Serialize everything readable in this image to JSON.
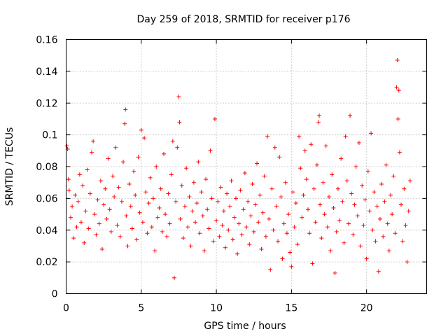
{
  "chart_data": {
    "type": "scatter",
    "title": "Day 259 of 2018, SRMTID for receiver p176",
    "xlabel": "GPS time / hours",
    "ylabel": "SRMTID / TECUs",
    "xlim": [
      0,
      24
    ],
    "ylim": [
      0,
      0.16
    ],
    "xticks": [
      0,
      5,
      10,
      15,
      20
    ],
    "xtick_labels": [
      "0",
      "5",
      "10",
      "15",
      "20"
    ],
    "yticks": [
      0,
      0.02,
      0.04,
      0.06,
      0.08,
      0.1,
      0.12,
      0.14,
      0.16
    ],
    "ytick_labels": [
      "0",
      "0.02",
      "0.04",
      "0.06",
      "0.08",
      "0.1",
      "0.12",
      "0.14",
      "0.16"
    ],
    "grid": true,
    "marker": "+",
    "color": "#ff0000",
    "series": [
      {
        "name": "SRMTID",
        "points": [
          [
            0.05,
            0.093
          ],
          [
            0.1,
            0.091
          ],
          [
            0.15,
            0.072
          ],
          [
            0.2,
            0.065
          ],
          [
            0.3,
            0.048
          ],
          [
            0.4,
            0.055
          ],
          [
            0.5,
            0.035
          ],
          [
            0.6,
            0.062
          ],
          [
            0.7,
            0.042
          ],
          [
            0.8,
            0.058
          ],
          [
            0.9,
            0.075
          ],
          [
            1.0,
            0.045
          ],
          [
            1.1,
            0.068
          ],
          [
            1.2,
            0.032
          ],
          [
            1.3,
            0.052
          ],
          [
            1.4,
            0.078
          ],
          [
            1.5,
            0.041
          ],
          [
            1.6,
            0.063
          ],
          [
            1.7,
            0.089
          ],
          [
            1.8,
            0.096
          ],
          [
            1.9,
            0.05
          ],
          [
            2.0,
            0.037
          ],
          [
            2.1,
            0.059
          ],
          [
            2.2,
            0.044
          ],
          [
            2.3,
            0.071
          ],
          [
            2.4,
            0.028
          ],
          [
            2.5,
            0.056
          ],
          [
            2.6,
            0.066
          ],
          [
            2.7,
            0.047
          ],
          [
            2.8,
            0.085
          ],
          [
            2.9,
            0.053
          ],
          [
            3.0,
            0.039
          ],
          [
            3.1,
            0.074
          ],
          [
            3.2,
            0.061
          ],
          [
            3.3,
            0.092
          ],
          [
            3.4,
            0.043
          ],
          [
            3.5,
            0.067
          ],
          [
            3.6,
            0.036
          ],
          [
            3.7,
            0.058
          ],
          [
            3.8,
            0.083
          ],
          [
            3.9,
            0.107
          ],
          [
            3.95,
            0.116
          ],
          [
            4.0,
            0.049
          ],
          [
            4.1,
            0.03
          ],
          [
            4.2,
            0.069
          ],
          [
            4.3,
            0.055
          ],
          [
            4.4,
            0.041
          ],
          [
            4.5,
            0.077
          ],
          [
            4.6,
            0.062
          ],
          [
            4.7,
            0.034
          ],
          [
            4.8,
            0.086
          ],
          [
            4.9,
            0.051
          ],
          [
            5.0,
            0.103
          ],
          [
            5.1,
            0.045
          ],
          [
            5.2,
            0.098
          ],
          [
            5.3,
            0.064
          ],
          [
            5.4,
            0.038
          ],
          [
            5.5,
            0.057
          ],
          [
            5.6,
            0.073
          ],
          [
            5.7,
            0.042
          ],
          [
            5.8,
            0.06
          ],
          [
            5.9,
            0.027
          ],
          [
            6.0,
            0.08
          ],
          [
            6.1,
            0.048
          ],
          [
            6.2,
            0.054
          ],
          [
            6.3,
            0.066
          ],
          [
            6.4,
            0.039
          ],
          [
            6.5,
            0.088
          ],
          [
            6.6,
            0.05
          ],
          [
            6.7,
            0.036
          ],
          [
            6.8,
            0.063
          ],
          [
            6.9,
            0.044
          ],
          [
            7.0,
            0.075
          ],
          [
            7.1,
            0.096
          ],
          [
            7.2,
            0.01
          ],
          [
            7.3,
            0.058
          ],
          [
            7.4,
            0.092
          ],
          [
            7.5,
            0.124
          ],
          [
            7.55,
            0.108
          ],
          [
            7.6,
            0.047
          ],
          [
            7.7,
            0.068
          ],
          [
            7.8,
            0.035
          ],
          [
            7.9,
            0.055
          ],
          [
            8.0,
            0.079
          ],
          [
            8.1,
            0.042
          ],
          [
            8.2,
            0.061
          ],
          [
            8.3,
            0.03
          ],
          [
            8.4,
            0.052
          ],
          [
            8.5,
            0.07
          ],
          [
            8.6,
            0.045
          ],
          [
            8.7,
            0.057
          ],
          [
            8.8,
            0.083
          ],
          [
            8.9,
            0.038
          ],
          [
            9.0,
            0.064
          ],
          [
            9.1,
            0.049
          ],
          [
            9.2,
            0.027
          ],
          [
            9.3,
            0.072
          ],
          [
            9.4,
            0.053
          ],
          [
            9.5,
            0.041
          ],
          [
            9.6,
            0.09
          ],
          [
            9.7,
            0.06
          ],
          [
            9.8,
            0.033
          ],
          [
            9.9,
            0.11
          ],
          [
            10.0,
            0.046
          ],
          [
            10.1,
            0.058
          ],
          [
            10.2,
            0.036
          ],
          [
            10.3,
            0.067
          ],
          [
            10.4,
            0.043
          ],
          [
            10.5,
            0.052
          ],
          [
            10.6,
            0.029
          ],
          [
            10.7,
            0.063
          ],
          [
            10.8,
            0.04
          ],
          [
            10.9,
            0.055
          ],
          [
            11.0,
            0.071
          ],
          [
            11.1,
            0.034
          ],
          [
            11.2,
            0.048
          ],
          [
            11.3,
            0.06
          ],
          [
            11.4,
            0.025
          ],
          [
            11.5,
            0.044
          ],
          [
            11.6,
            0.065
          ],
          [
            11.7,
            0.037
          ],
          [
            11.8,
            0.053
          ],
          [
            11.9,
            0.076
          ],
          [
            12.0,
            0.042
          ],
          [
            12.1,
            0.058
          ],
          [
            12.2,
            0.031
          ],
          [
            12.3,
            0.049
          ],
          [
            12.4,
            0.069
          ],
          [
            12.5,
            0.039
          ],
          [
            12.6,
            0.056
          ],
          [
            12.7,
            0.082
          ],
          [
            12.8,
            0.045
          ],
          [
            12.9,
            0.062
          ],
          [
            13.0,
            0.028
          ],
          [
            13.1,
            0.051
          ],
          [
            13.2,
            0.074
          ],
          [
            13.3,
            0.036
          ],
          [
            13.4,
            0.099
          ],
          [
            13.5,
            0.047
          ],
          [
            13.6,
            0.015
          ],
          [
            13.7,
            0.066
          ],
          [
            13.8,
            0.04
          ],
          [
            13.9,
            0.092
          ],
          [
            14.0,
            0.055
          ],
          [
            14.1,
            0.033
          ],
          [
            14.2,
            0.086
          ],
          [
            14.3,
            0.061
          ],
          [
            14.4,
            0.022
          ],
          [
            14.5,
            0.044
          ],
          [
            14.6,
            0.07
          ],
          [
            14.7,
            0.038
          ],
          [
            14.8,
            0.05
          ],
          [
            14.9,
            0.026
          ],
          [
            15.0,
            0.017
          ],
          [
            15.1,
            0.064
          ],
          [
            15.2,
            0.042
          ],
          [
            15.3,
            0.057
          ],
          [
            15.4,
            0.031
          ],
          [
            15.5,
            0.099
          ],
          [
            15.6,
            0.079
          ],
          [
            15.7,
            0.048
          ],
          [
            15.8,
            0.062
          ],
          [
            15.9,
            0.09
          ],
          [
            16.0,
            0.072
          ],
          [
            16.1,
            0.053
          ],
          [
            16.2,
            0.038
          ],
          [
            16.3,
            0.094
          ],
          [
            16.4,
            0.019
          ],
          [
            16.5,
            0.066
          ],
          [
            16.6,
            0.045
          ],
          [
            16.7,
            0.081
          ],
          [
            16.8,
            0.108
          ],
          [
            16.85,
            0.112
          ],
          [
            16.9,
            0.056
          ],
          [
            17.0,
            0.035
          ],
          [
            17.1,
            0.07
          ],
          [
            17.2,
            0.05
          ],
          [
            17.3,
            0.093
          ],
          [
            17.4,
            0.042
          ],
          [
            17.5,
            0.061
          ],
          [
            17.6,
            0.027
          ],
          [
            17.7,
            0.075
          ],
          [
            17.8,
            0.054
          ],
          [
            17.9,
            0.013
          ],
          [
            18.0,
            0.039
          ],
          [
            18.1,
            0.066
          ],
          [
            18.2,
            0.046
          ],
          [
            18.3,
            0.085
          ],
          [
            18.4,
            0.058
          ],
          [
            18.5,
            0.032
          ],
          [
            18.6,
            0.099
          ],
          [
            18.7,
            0.071
          ],
          [
            18.8,
            0.044
          ],
          [
            18.9,
            0.112
          ],
          [
            19.0,
            0.063
          ],
          [
            19.1,
            0.037
          ],
          [
            19.2,
            0.056
          ],
          [
            19.3,
            0.08
          ],
          [
            19.4,
            0.049
          ],
          [
            19.5,
            0.095
          ],
          [
            19.6,
            0.03
          ],
          [
            19.7,
            0.068
          ],
          [
            19.8,
            0.043
          ],
          [
            19.9,
            0.059
          ],
          [
            20.0,
            0.022
          ],
          [
            20.1,
            0.077
          ],
          [
            20.2,
            0.052
          ],
          [
            20.3,
            0.101
          ],
          [
            20.4,
            0.04
          ],
          [
            20.5,
            0.064
          ],
          [
            20.6,
            0.033
          ],
          [
            20.7,
            0.055
          ],
          [
            20.8,
            0.014
          ],
          [
            20.9,
            0.047
          ],
          [
            21.0,
            0.069
          ],
          [
            21.1,
            0.036
          ],
          [
            21.2,
            0.058
          ],
          [
            21.3,
            0.081
          ],
          [
            21.4,
            0.044
          ],
          [
            21.5,
            0.027
          ],
          [
            21.6,
            0.062
          ],
          [
            21.7,
            0.05
          ],
          [
            21.8,
            0.074
          ],
          [
            21.9,
            0.038
          ],
          [
            22.0,
            0.13
          ],
          [
            22.05,
            0.147
          ],
          [
            22.1,
            0.11
          ],
          [
            22.15,
            0.128
          ],
          [
            22.2,
            0.089
          ],
          [
            22.3,
            0.056
          ],
          [
            22.4,
            0.033
          ],
          [
            22.5,
            0.066
          ],
          [
            22.6,
            0.043
          ],
          [
            22.7,
            0.02
          ],
          [
            22.8,
            0.052
          ],
          [
            22.9,
            0.071
          ]
        ]
      }
    ]
  }
}
